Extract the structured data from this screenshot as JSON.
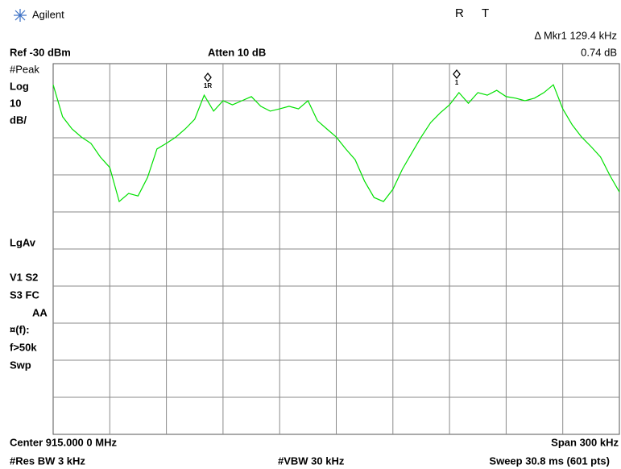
{
  "header": {
    "brand": "Agilent",
    "status_r": "R",
    "status_t": "T",
    "marker_readout": "Δ Mkr1  129.4 kHz",
    "ref_level": "Ref -30 dBm",
    "attenuation": "Atten 10 dB",
    "marker_delta": "0.74 dB"
  },
  "side_panel": [
    "#Peak",
    "Log",
    "10",
    "dB/",
    "LgAv",
    "V1  S2",
    "S3  FC",
    "AA",
    "¤(f):",
    "f>50k",
    "Swp"
  ],
  "markers": [
    {
      "label": "1R"
    },
    {
      "label": "1"
    }
  ],
  "footer": {
    "center": "Center 915.000 0 MHz",
    "span": "Span 300 kHz",
    "res_bw": "#Res BW 3 kHz",
    "vbw": "#VBW 30 kHz",
    "sweep": "Sweep 30.8 ms (601 pts)"
  },
  "chart_data": {
    "type": "line",
    "color": "#00e000",
    "xlim": [
      914.85,
      915.15
    ],
    "ylim": [
      -130,
      -30
    ],
    "x": [
      914.85,
      914.855,
      914.86,
      914.865,
      914.87,
      914.875,
      914.88,
      914.885,
      914.89,
      914.895,
      914.9,
      914.905,
      914.91,
      914.915,
      914.92,
      914.925,
      914.93,
      914.935,
      914.94,
      914.945,
      914.95,
      914.955,
      914.96,
      914.965,
      914.97,
      914.975,
      914.98,
      914.985,
      914.99,
      914.995,
      915.0,
      915.005,
      915.01,
      915.015,
      915.02,
      915.025,
      915.03,
      915.035,
      915.04,
      915.045,
      915.05,
      915.055,
      915.06,
      915.065,
      915.07,
      915.075,
      915.08,
      915.085,
      915.09,
      915.095,
      915.1,
      915.105,
      915.11,
      915.115,
      915.12,
      915.125,
      915.13,
      915.135,
      915.14,
      915.145,
      915.15
    ],
    "values": [
      -35.7,
      -44.3,
      -47.6,
      -49.8,
      -51.5,
      -55.2,
      -58.0,
      -67.2,
      -65.0,
      -65.7,
      -60.7,
      -53.0,
      -51.5,
      -49.8,
      -47.6,
      -45.0,
      -38.5,
      -42.8,
      -40.0,
      -41.1,
      -40.0,
      -38.9,
      -41.5,
      -42.8,
      -42.2,
      -41.5,
      -42.2,
      -40.0,
      -45.4,
      -47.6,
      -49.8,
      -53.0,
      -55.9,
      -61.7,
      -66.1,
      -67.2,
      -63.9,
      -58.5,
      -54.1,
      -49.8,
      -45.9,
      -43.3,
      -41.1,
      -37.8,
      -40.7,
      -37.8,
      -38.5,
      -37.2,
      -38.9,
      -39.3,
      -40.0,
      -39.3,
      -37.8,
      -35.7,
      -42.2,
      -46.5,
      -49.8,
      -52.4,
      -55.2,
      -60.2,
      -64.6
    ]
  }
}
